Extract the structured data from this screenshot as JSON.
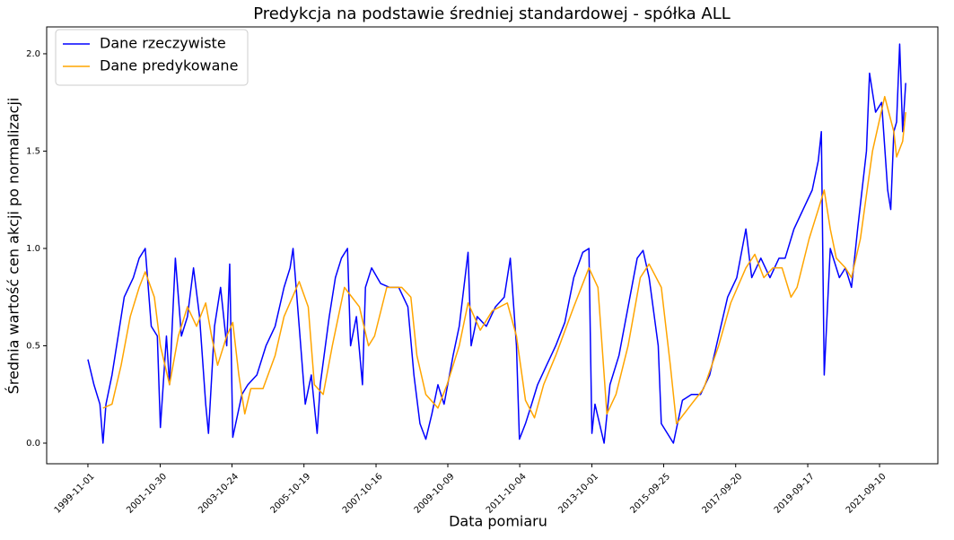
{
  "chart_data": {
    "type": "line",
    "title": "Predykcja na podstawie średniej standardowej - spółka ALL",
    "x_label": "Data pomiaru",
    "y_label": "Średnia wartość cen akcji po normalizacji",
    "xlim": [
      "1998-09-11",
      "2023-04-21"
    ],
    "xticks": [
      "1999-11-01",
      "2001-10-30",
      "2003-10-24",
      "2005-10-19",
      "2007-10-16",
      "2009-10-09",
      "2011-10-04",
      "2013-10-01",
      "2015-09-25",
      "2017-09-20",
      "2019-09-17",
      "2021-09-10"
    ],
    "ylim": [
      -0.106,
      2.138
    ],
    "yticks": [
      {
        "value": 0,
        "label": "0.0"
      },
      {
        "value": 0.5,
        "label": "0.5"
      },
      {
        "value": 1,
        "label": "1.0"
      },
      {
        "value": 1.5,
        "label": "1.5"
      },
      {
        "value": 2,
        "label": "2.0"
      }
    ],
    "legend": "upper left",
    "series": [
      {
        "name": "Dane rzeczywiste",
        "color": "#0000ff",
        "x": [
          "1999-11",
          "2000-01",
          "2000-03",
          "2000-04",
          "2000-05",
          "2000-07",
          "2000-09",
          "2000-11",
          "2001-02",
          "2001-04",
          "2001-06",
          "2001-08",
          "2001-10",
          "2001-11",
          "2002-01",
          "2002-02",
          "2002-04",
          "2002-06",
          "2002-08",
          "2002-10",
          "2002-12",
          "2003-02",
          "2003-03",
          "2003-05",
          "2003-07",
          "2003-09",
          "2003-10",
          "2003-11",
          "2004-02",
          "2004-04",
          "2004-07",
          "2004-10",
          "2005-01",
          "2005-04",
          "2005-06",
          "2005-07",
          "2005-09",
          "2005-11",
          "2006-01",
          "2006-03",
          "2006-04",
          "2006-07",
          "2006-09",
          "2006-11",
          "2007-01",
          "2007-02",
          "2007-04",
          "2007-06",
          "2007-07",
          "2007-09",
          "2007-12",
          "2008-03",
          "2008-06",
          "2008-09",
          "2008-11",
          "2009-01",
          "2009-03",
          "2009-05",
          "2009-07",
          "2009-09",
          "2009-12",
          "2010-02",
          "2010-05",
          "2010-06",
          "2010-08",
          "2010-11",
          "2011-02",
          "2011-05",
          "2011-07",
          "2011-09",
          "2011-10",
          "2011-12",
          "2012-02",
          "2012-04",
          "2012-07",
          "2012-10",
          "2013-01",
          "2013-04",
          "2013-07",
          "2013-09",
          "2013-10",
          "2013-11",
          "2014-02",
          "2014-04",
          "2014-07",
          "2014-10",
          "2015-01",
          "2015-03",
          "2015-05",
          "2015-08",
          "2015-09",
          "2015-11",
          "2016-01",
          "2016-04",
          "2016-07",
          "2016-10",
          "2017-01",
          "2017-04",
          "2017-07",
          "2017-10",
          "2018-01",
          "2018-03",
          "2018-06",
          "2018-09",
          "2018-12",
          "2019-02",
          "2019-05",
          "2019-08",
          "2019-11",
          "2020-01",
          "2020-02",
          "2020-03",
          "2020-05",
          "2020-08",
          "2020-10",
          "2020-12",
          "2021-02",
          "2021-05",
          "2021-06",
          "2021-08",
          "2021-10",
          "2021-12",
          "2022-01",
          "2022-02",
          "2022-03",
          "2022-04",
          "2022-05",
          "2022-06"
        ],
        "values": [
          0.43,
          0.3,
          0.2,
          0.0,
          0.2,
          0.35,
          0.55,
          0.75,
          0.85,
          0.95,
          1.0,
          0.6,
          0.55,
          0.08,
          0.55,
          0.3,
          0.95,
          0.55,
          0.65,
          0.9,
          0.65,
          0.2,
          0.05,
          0.6,
          0.8,
          0.5,
          0.92,
          0.03,
          0.25,
          0.3,
          0.35,
          0.5,
          0.6,
          0.8,
          0.9,
          1.0,
          0.6,
          0.2,
          0.35,
          0.05,
          0.3,
          0.65,
          0.85,
          0.95,
          1.0,
          0.5,
          0.65,
          0.3,
          0.8,
          0.9,
          0.82,
          0.8,
          0.8,
          0.7,
          0.35,
          0.1,
          0.02,
          0.15,
          0.3,
          0.2,
          0.45,
          0.6,
          0.98,
          0.5,
          0.65,
          0.6,
          0.7,
          0.75,
          0.95,
          0.5,
          0.02,
          0.1,
          0.2,
          0.3,
          0.4,
          0.5,
          0.62,
          0.85,
          0.98,
          1.0,
          0.05,
          0.2,
          0.0,
          0.3,
          0.45,
          0.7,
          0.95,
          0.99,
          0.85,
          0.5,
          0.1,
          0.05,
          0.0,
          0.22,
          0.25,
          0.25,
          0.35,
          0.55,
          0.75,
          0.85,
          1.1,
          0.85,
          0.95,
          0.85,
          0.95,
          0.95,
          1.1,
          1.2,
          1.3,
          1.45,
          1.6,
          0.35,
          1.0,
          0.85,
          0.9,
          0.8,
          1.1,
          1.5,
          1.9,
          1.7,
          1.75,
          1.3,
          1.2,
          1.6,
          1.65,
          2.05,
          1.6,
          1.85
        ]
      },
      {
        "name": "Dane predykowane",
        "color": "#ffa500",
        "x": [
          "2000-04",
          "2000-07",
          "2000-10",
          "2001-01",
          "2001-04",
          "2001-06",
          "2001-09",
          "2001-11",
          "2002-02",
          "2002-05",
          "2002-08",
          "2002-11",
          "2003-02",
          "2003-04",
          "2003-06",
          "2003-09",
          "2003-11",
          "2004-01",
          "2004-03",
          "2004-05",
          "2004-09",
          "2005-01",
          "2005-04",
          "2005-09",
          "2005-12",
          "2006-02",
          "2006-05",
          "2006-08",
          "2006-12",
          "2007-05",
          "2007-08",
          "2007-10",
          "2008-02",
          "2008-07",
          "2008-10",
          "2008-12",
          "2009-03",
          "2009-07",
          "2009-10",
          "2010-02",
          "2010-05",
          "2010-09",
          "2011-01",
          "2011-06",
          "2011-09",
          "2011-12",
          "2012-03",
          "2012-06",
          "2012-10",
          "2013-04",
          "2013-09",
          "2013-12",
          "2014-03",
          "2014-06",
          "2014-10",
          "2015-02",
          "2015-05",
          "2015-09",
          "2015-12",
          "2016-02",
          "2016-07",
          "2016-11",
          "2017-04",
          "2017-08",
          "2018-01",
          "2018-04",
          "2018-07",
          "2018-10",
          "2019-01",
          "2019-04",
          "2019-06",
          "2019-10",
          "2020-01",
          "2020-03",
          "2020-05",
          "2020-07",
          "2020-10",
          "2020-12",
          "2021-03",
          "2021-07",
          "2021-11",
          "2022-02",
          "2022-03",
          "2022-05",
          "2022-06"
        ],
        "values": [
          0.18,
          0.2,
          0.4,
          0.65,
          0.8,
          0.88,
          0.75,
          0.5,
          0.3,
          0.55,
          0.7,
          0.6,
          0.72,
          0.55,
          0.4,
          0.55,
          0.62,
          0.35,
          0.15,
          0.28,
          0.28,
          0.45,
          0.65,
          0.83,
          0.7,
          0.3,
          0.25,
          0.5,
          0.8,
          0.7,
          0.5,
          0.55,
          0.8,
          0.8,
          0.75,
          0.45,
          0.25,
          0.18,
          0.3,
          0.5,
          0.72,
          0.58,
          0.68,
          0.72,
          0.55,
          0.22,
          0.13,
          0.3,
          0.45,
          0.7,
          0.9,
          0.8,
          0.15,
          0.25,
          0.5,
          0.85,
          0.92,
          0.8,
          0.4,
          0.1,
          0.2,
          0.28,
          0.5,
          0.72,
          0.9,
          0.97,
          0.85,
          0.9,
          0.9,
          0.75,
          0.8,
          1.05,
          1.2,
          1.3,
          1.1,
          0.95,
          0.9,
          0.85,
          1.05,
          1.5,
          1.78,
          1.6,
          1.47,
          1.55,
          1.7
        ]
      }
    ]
  }
}
